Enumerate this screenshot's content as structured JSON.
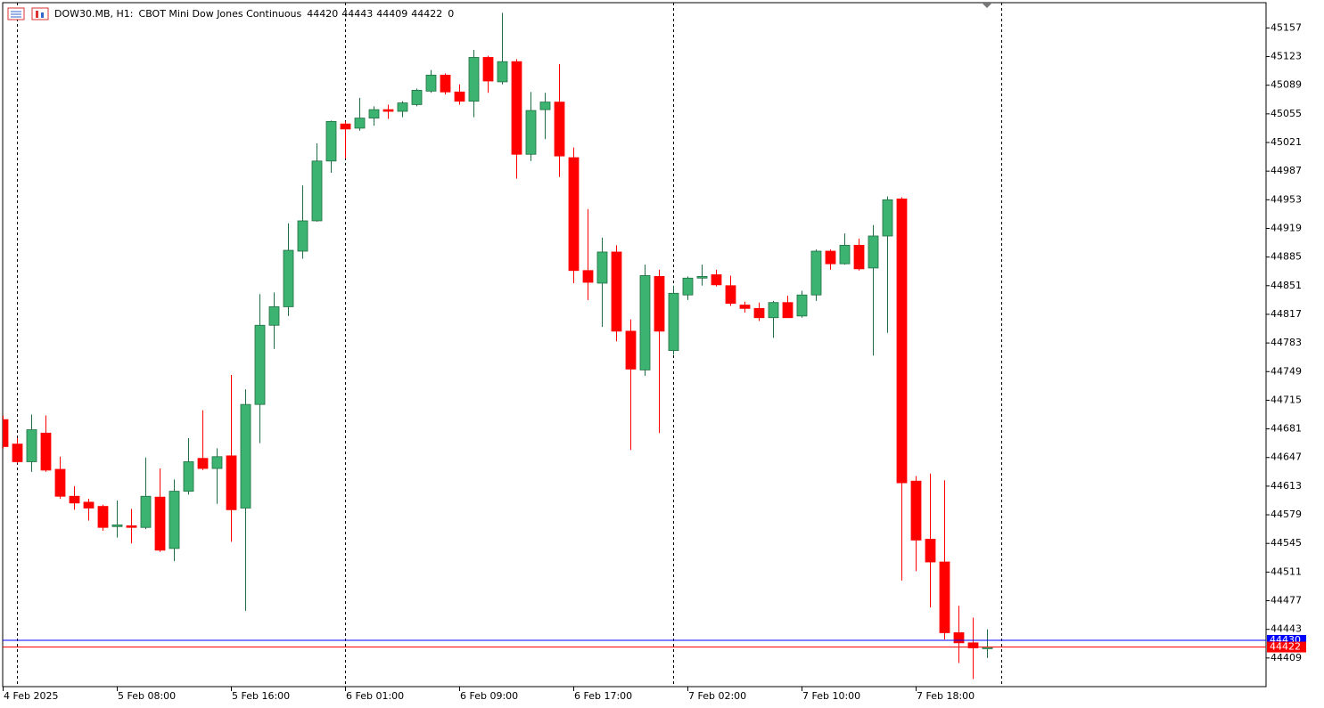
{
  "chart_data": {
    "type": "candlestick",
    "symbol": "DOW30.MB, H1:",
    "description": "CBOT Mini Dow Jones Continuous",
    "status": "0",
    "categories": [
      "4 Feb 2025",
      null,
      null,
      null,
      null,
      null,
      null,
      null,
      "5 Feb 08:00",
      null,
      null,
      null,
      null,
      null,
      null,
      null,
      "5 Feb 16:00",
      null,
      null,
      null,
      null,
      null,
      null,
      null,
      "6 Feb 01:00",
      null,
      null,
      null,
      null,
      null,
      null,
      null,
      "6 Feb 09:00",
      null,
      null,
      null,
      null,
      null,
      null,
      null,
      "6 Feb 17:00",
      null,
      null,
      null,
      null,
      null,
      null,
      null,
      "7 Feb 02:00",
      null,
      null,
      null,
      null,
      null,
      null,
      null,
      "7 Feb 10:00",
      null,
      null,
      null,
      null,
      null,
      null,
      null,
      "7 Feb 18:00",
      null,
      null,
      null,
      null,
      null
    ],
    "open": [
      44692,
      44663,
      44642,
      44676,
      44633,
      44601,
      44594,
      44589,
      44565,
      44566,
      44564,
      44600,
      44539,
      44607,
      44646,
      44634,
      44649,
      44587,
      44710,
      44804,
      44826,
      44892,
      44928,
      44999,
      45043,
      45038,
      45050,
      45060,
      45058,
      45066,
      45082,
      45101,
      45081,
      45070,
      45122,
      45093,
      45117,
      45007,
      45060,
      45069,
      45003,
      44869,
      44854,
      44891,
      44797,
      44751,
      44862,
      44774,
      44840,
      44860,
      44864,
      44851,
      44828,
      44824,
      44813,
      44831,
      44815,
      44840,
      44892,
      44877,
      44899,
      44872,
      44910,
      44954,
      44619,
      44550,
      44523,
      44439,
      44427,
      44420
    ],
    "high": [
      44697,
      44670,
      44698,
      44697,
      44648,
      44613,
      44598,
      44591,
      44596,
      44586,
      44647,
      44634,
      44621,
      44670,
      44703,
      44658,
      44745,
      44728,
      44841,
      44843,
      44925,
      44970,
      45020,
      45047,
      45046,
      45074,
      45064,
      45066,
      45070,
      45085,
      45107,
      45103,
      45090,
      45131,
      45124,
      45175,
      45120,
      45081,
      45080,
      45114,
      45015,
      44942,
      44908,
      44899,
      44811,
      44876,
      44870,
      44851,
      44862,
      44876,
      44870,
      44863,
      44832,
      44831,
      44833,
      44839,
      44845,
      44894,
      44894,
      44913,
      44907,
      44923,
      44957,
      44956,
      44625,
      44628,
      44620,
      44471,
      44457,
      44443
    ],
    "low": [
      44658,
      44640,
      44630,
      44630,
      44598,
      44585,
      44572,
      44560,
      44552,
      44545,
      44562,
      44535,
      44524,
      44603,
      44632,
      44592,
      44547,
      44465,
      44664,
      44776,
      44815,
      44883,
      44927,
      44985,
      45002,
      45035,
      45041,
      45049,
      45051,
      45064,
      45080,
      45078,
      45066,
      45051,
      45080,
      45090,
      44978,
      44999,
      45025,
      44980,
      44854,
      44834,
      44802,
      44785,
      44656,
      44744,
      44676,
      44769,
      44834,
      44851,
      44850,
      44827,
      44819,
      44809,
      44789,
      44813,
      44813,
      44833,
      44870,
      44876,
      44869,
      44768,
      44795,
      44501,
      44512,
      44469,
      44431,
      44403,
      44384,
      44409
    ],
    "close": [
      44660,
      44642,
      44680,
      44632,
      44601,
      44593,
      44587,
      44564,
      44567,
      44564,
      44601,
      44537,
      44607,
      44642,
      44634,
      44648,
      44585,
      44710,
      44804,
      44826,
      44893,
      44928,
      44999,
      45046,
      45037,
      45050,
      45060,
      45058,
      45068,
      45083,
      45101,
      45081,
      45070,
      45122,
      45094,
      45117,
      45007,
      45059,
      45069,
      45005,
      44869,
      44855,
      44891,
      44797,
      44752,
      44863,
      44797,
      44842,
      44860,
      44862,
      44852,
      44830,
      44824,
      44813,
      44831,
      44813,
      44840,
      44892,
      44877,
      44899,
      44871,
      44910,
      44953,
      44617,
      44549,
      44523,
      44439,
      44427,
      44421,
      44422
    ],
    "up_color": "#3cb371",
    "up_edge_color": "#1f6e42",
    "down_color": "#ff0000",
    "ask": 44430,
    "ask_color": "#0000ff",
    "bid": 44422,
    "bid_color": "#ff0000",
    "ylim": [
      44375,
      45187
    ],
    "yticks": [
      45157,
      45123,
      45089,
      45055,
      45021,
      44987,
      44953,
      44919,
      44885,
      44851,
      44817,
      44783,
      44749,
      44715,
      44681,
      44647,
      44613,
      44579,
      44545,
      44511,
      44477,
      44443,
      44409
    ]
  }
}
